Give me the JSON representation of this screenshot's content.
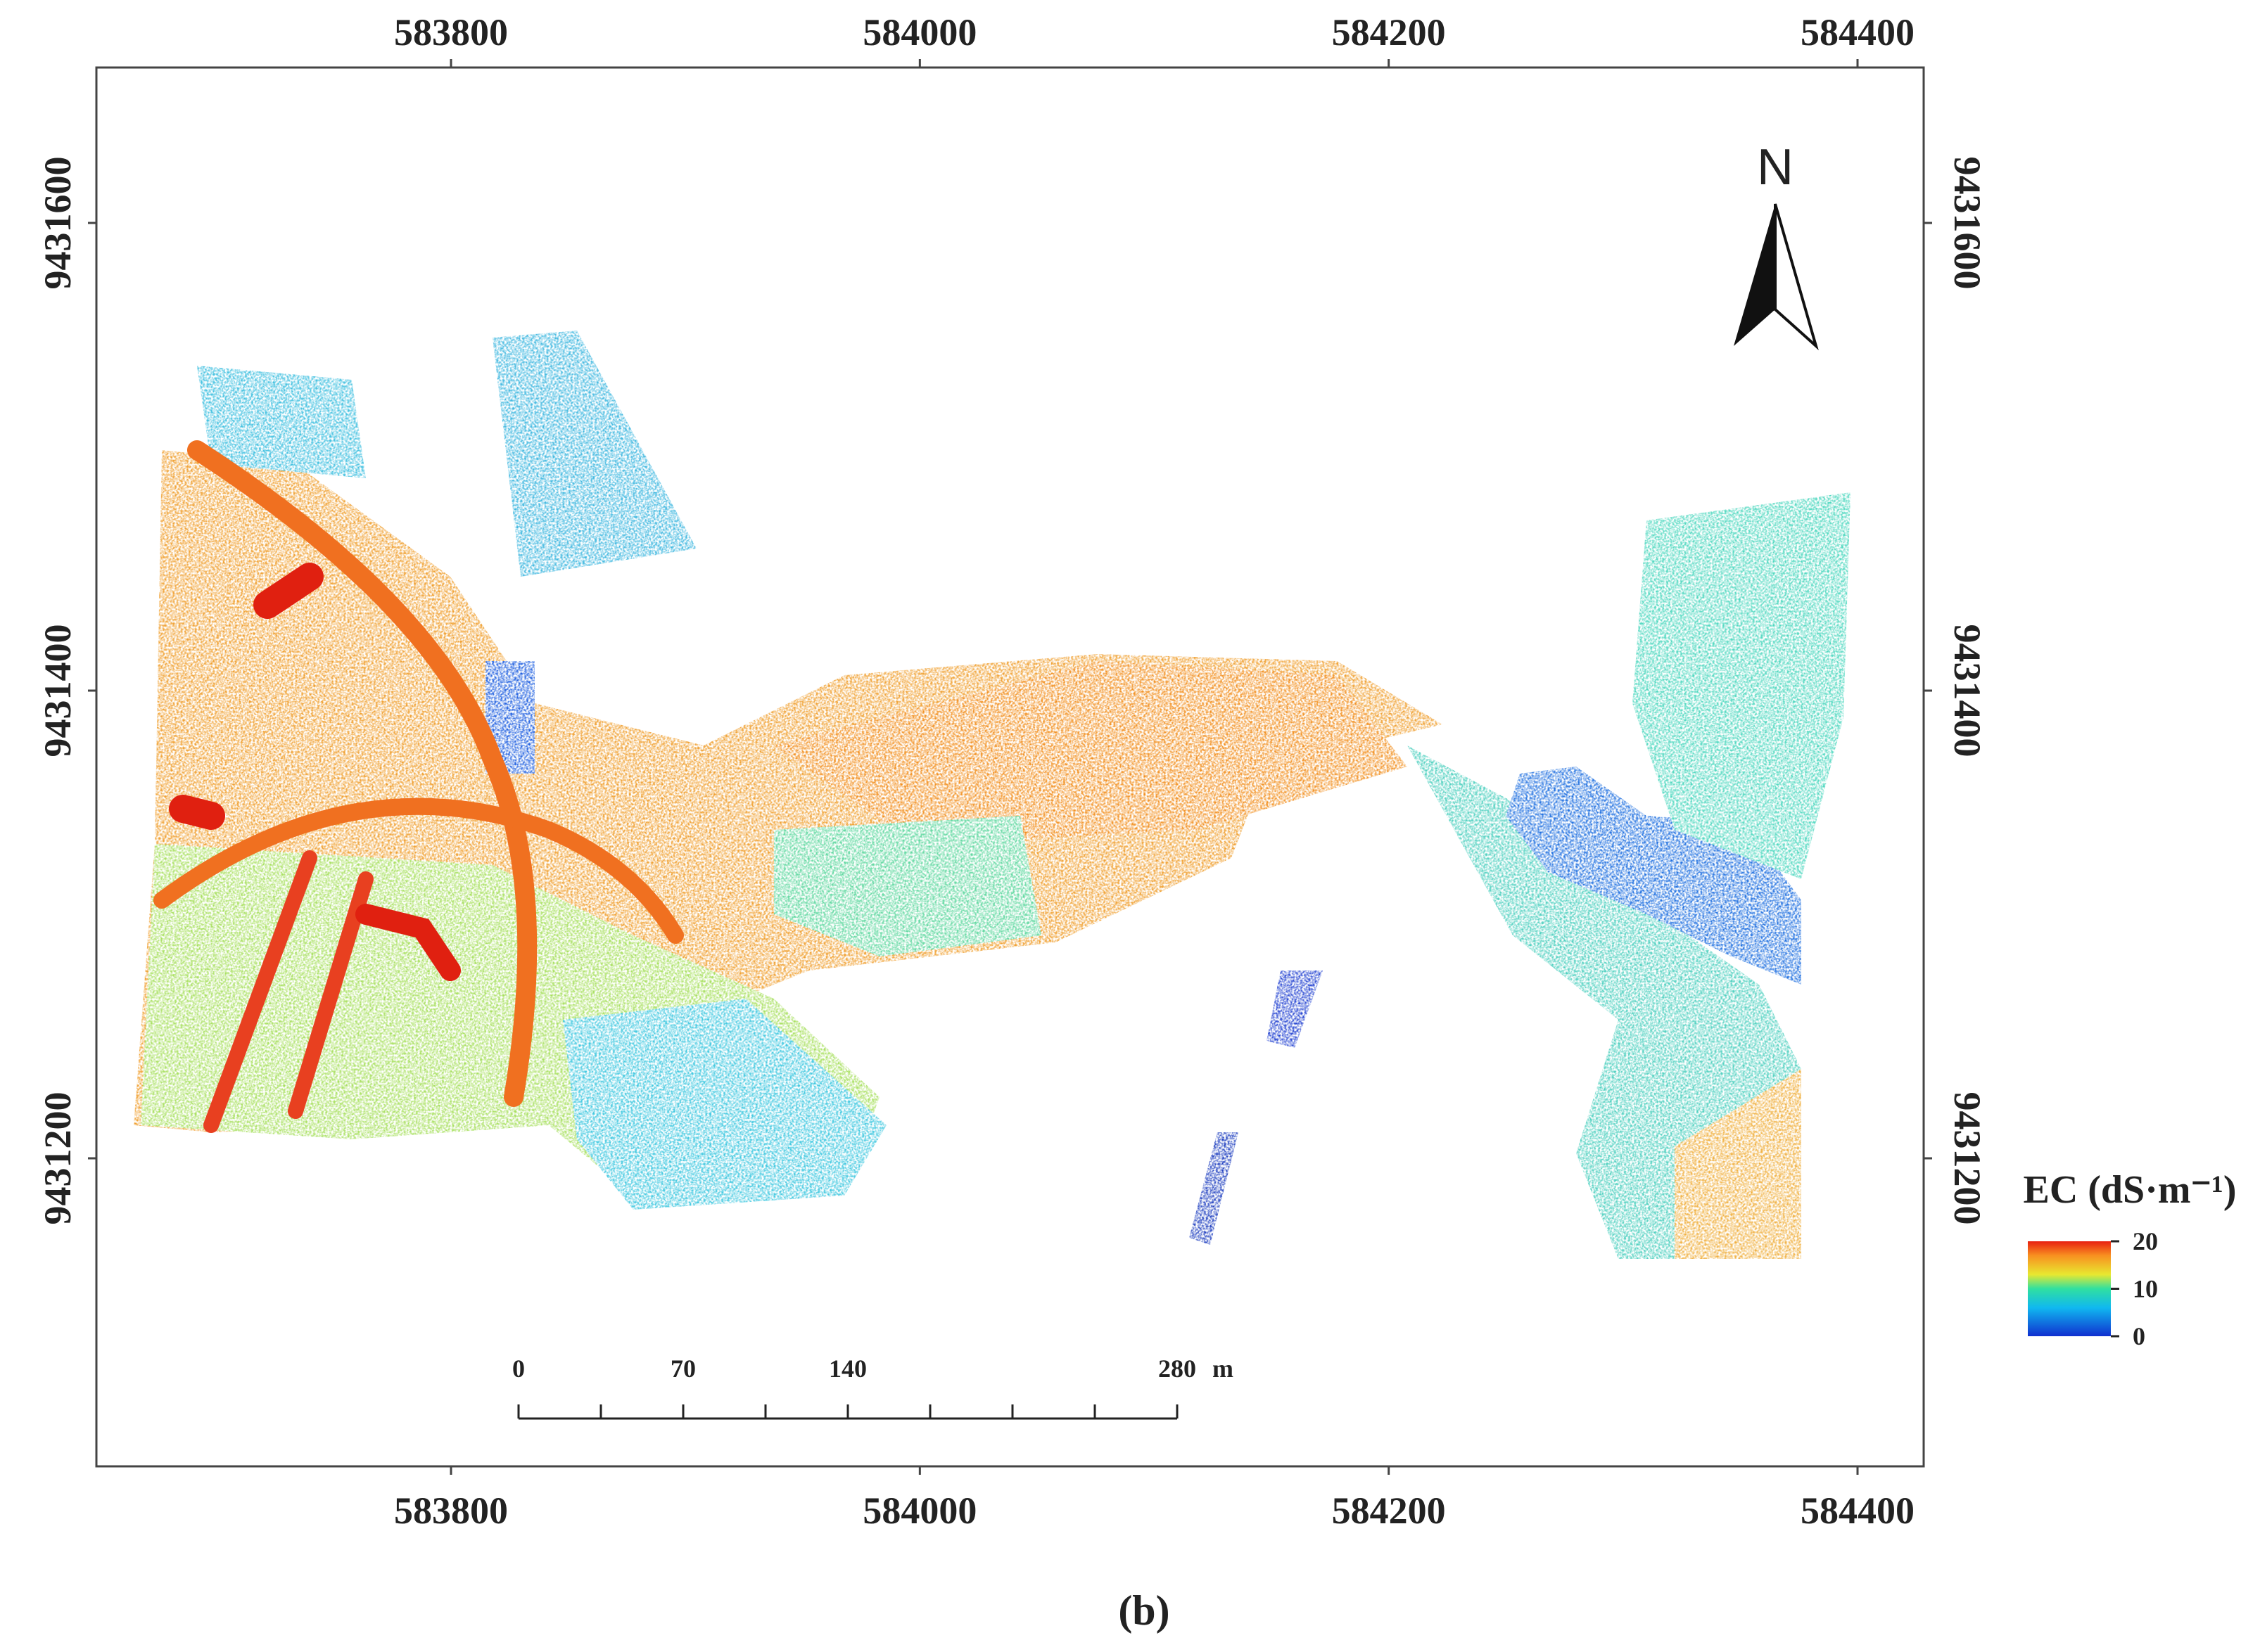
{
  "map": {
    "x_ticks": [
      583800,
      584000,
      584200,
      584400
    ],
    "y_ticks": [
      9431600,
      9431400,
      9431200
    ],
    "north_label": "N",
    "legend": {
      "title": "EC (dS·m⁻¹)",
      "ticks": [
        20,
        10,
        0
      ]
    },
    "scale_bar": {
      "ticks": [
        0,
        70,
        140,
        280
      ],
      "unit": "m"
    },
    "caption": "(b)"
  }
}
